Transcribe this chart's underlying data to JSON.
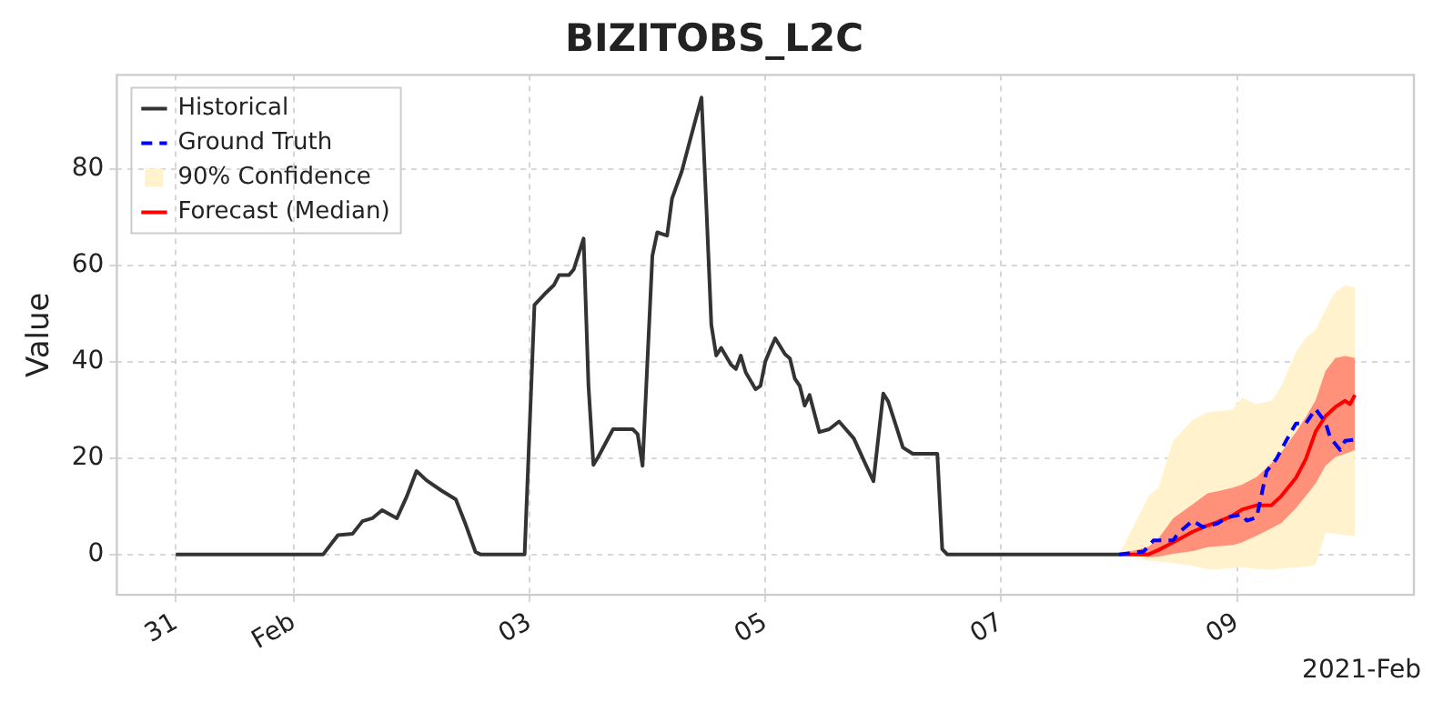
{
  "chart_data": {
    "type": "line",
    "title": "BIZITOBS_L2C",
    "ylabel": "Value",
    "annotations": [
      "2021-Feb"
    ],
    "xlim": [
      "2021-01-30T12:00",
      "2021-02-10T12:00"
    ],
    "xticks": [
      {
        "value": "2021-01-31",
        "label": "31"
      },
      {
        "value": "2021-02-01",
        "label": "Feb"
      },
      {
        "value": "2021-02-03",
        "label": "03"
      },
      {
        "value": "2021-02-05",
        "label": "05"
      },
      {
        "value": "2021-02-07",
        "label": "07"
      },
      {
        "value": "2021-02-09",
        "label": "09"
      }
    ],
    "ylim": [
      -8.4,
      99.6
    ],
    "yticks": [
      0,
      20,
      40,
      60,
      80
    ],
    "grid": true,
    "legend": "top left",
    "marker": "none",
    "series": [
      {
        "name": "Historical",
        "color": "#333333",
        "line_style": "solid",
        "x": [
          "2021-01-31T00:00",
          "2021-02-01T06:00",
          "2021-02-01T09:00",
          "2021-02-01T12:00",
          "2021-02-01T14:00",
          "2021-02-01T16:00",
          "2021-02-01T18:00",
          "2021-02-01T21:00",
          "2021-02-01T23:00",
          "2021-02-02T01:00",
          "2021-02-02T03:00",
          "2021-02-02T06:00",
          "2021-02-02T09:00",
          "2021-02-02T11:00",
          "2021-02-02T13:00",
          "2021-02-02T14:00",
          "2021-02-02T23:00",
          "2021-02-03T01:00",
          "2021-02-03T03:00",
          "2021-02-03T05:00",
          "2021-02-03T06:00",
          "2021-02-03T08:00",
          "2021-02-03T09:00",
          "2021-02-03T11:00",
          "2021-02-03T12:00",
          "2021-02-03T13:00",
          "2021-02-03T14:00",
          "2021-02-03T16:00",
          "2021-02-03T17:00",
          "2021-02-03T21:00",
          "2021-02-03T22:00",
          "2021-02-03T23:00",
          "2021-02-04T01:00",
          "2021-02-04T02:00",
          "2021-02-04T04:00",
          "2021-02-04T05:00",
          "2021-02-04T07:00",
          "2021-02-04T09:00",
          "2021-02-04T11:00",
          "2021-02-04T12:00",
          "2021-02-04T13:00",
          "2021-02-04T14:00",
          "2021-02-04T15:00",
          "2021-02-04T17:00",
          "2021-02-04T18:00",
          "2021-02-04T19:00",
          "2021-02-04T20:00",
          "2021-02-04T22:00",
          "2021-02-04T23:00",
          "2021-02-05T00:00",
          "2021-02-05T01:00",
          "2021-02-05T02:00",
          "2021-02-05T04:00",
          "2021-02-05T05:00",
          "2021-02-05T06:00",
          "2021-02-05T07:00",
          "2021-02-05T08:00",
          "2021-02-05T09:00",
          "2021-02-05T11:00",
          "2021-02-05T13:00",
          "2021-02-05T15:00",
          "2021-02-05T18:00",
          "2021-02-05T20:00",
          "2021-02-05T22:00",
          "2021-02-06T00:00",
          "2021-02-06T01:00",
          "2021-02-06T03:00",
          "2021-02-06T04:00",
          "2021-02-06T06:00",
          "2021-02-06T11:00",
          "2021-02-06T12:00",
          "2021-02-06T13:00",
          "2021-02-08T00:00"
        ],
        "values": [
          0,
          0,
          4,
          4.3,
          6.9,
          7.5,
          9.2,
          7.5,
          12,
          17.3,
          15.4,
          13.3,
          11.4,
          6.2,
          0.5,
          0,
          0,
          51.8,
          54,
          56,
          58,
          58,
          59.2,
          65.6,
          35,
          18.6,
          20.3,
          24.1,
          26,
          26,
          25,
          18.4,
          62,
          66.9,
          66.2,
          73.9,
          79.6,
          87.3,
          94.9,
          72,
          47.7,
          41.3,
          42.9,
          39.4,
          38.5,
          41.3,
          37.8,
          34.3,
          35,
          40.1,
          42.6,
          44.9,
          41.6,
          40.7,
          36.5,
          35,
          30.9,
          33.1,
          25.4,
          26,
          27.6,
          24.1,
          19.6,
          15.2,
          33.4,
          31.8,
          25.4,
          22.2,
          20.9,
          20.9,
          1.1,
          0,
          0
        ]
      },
      {
        "name": "Ground Truth",
        "color": "#0000ff",
        "line_style": "dashed",
        "x": [
          "2021-02-08T00:00",
          "2021-02-08T05:00",
          "2021-02-08T07:00",
          "2021-02-08T11:00",
          "2021-02-08T12:00",
          "2021-02-08T15:00",
          "2021-02-08T17:00",
          "2021-02-08T20:00",
          "2021-02-08T22:00",
          "2021-02-09T01:00",
          "2021-02-09T02:00",
          "2021-02-09T04:00",
          "2021-02-09T06:00",
          "2021-02-09T08:00",
          "2021-02-09T10:00",
          "2021-02-09T12:00",
          "2021-02-09T14:00",
          "2021-02-09T16:00",
          "2021-02-09T18:00",
          "2021-02-09T19:00",
          "2021-02-09T21:00",
          "2021-02-09T22:00",
          "2021-02-10T00:00"
        ],
        "values": [
          0,
          0.6,
          2.9,
          2.9,
          4.4,
          7,
          5.7,
          6.4,
          7.7,
          8.3,
          7,
          7.7,
          17.2,
          19.8,
          23.6,
          27.2,
          27.2,
          30.2,
          27.4,
          24.2,
          21.7,
          23.6,
          23.8
        ]
      },
      {
        "name": "90% Confidence",
        "color": "#fff2cc",
        "x": [
          "2021-02-08T00:00",
          "2021-02-08T06:00",
          "2021-02-08T08:00",
          "2021-02-08T11:00",
          "2021-02-08T15:00",
          "2021-02-08T18:00",
          "2021-02-08T20:00",
          "2021-02-08T23:00",
          "2021-02-09T01:00",
          "2021-02-09T04:00",
          "2021-02-09T07:00",
          "2021-02-09T09:00",
          "2021-02-09T12:00",
          "2021-02-09T14:00",
          "2021-02-09T16:00",
          "2021-02-09T18:00",
          "2021-02-09T20:00",
          "2021-02-09T22:00",
          "2021-02-09T23:00",
          "2021-02-10T00:00"
        ],
        "values": [
          null,
          null,
          null,
          null,
          null,
          null,
          null,
          null,
          null,
          null,
          null,
          null,
          null,
          null,
          null,
          null,
          null,
          null,
          null,
          null
        ],
        "lower": [
          0,
          -1.3,
          -1.5,
          -1.8,
          -2.4,
          -3.1,
          -3.2,
          -2.8,
          -2.7,
          -3,
          -3.2,
          -2.9,
          -2.7,
          -2.5,
          -2.2,
          4.5,
          4.3,
          4,
          3.9,
          3.8
        ],
        "upper": [
          0,
          12.1,
          13.8,
          23.6,
          28,
          29.5,
          29.8,
          30,
          32.5,
          31.2,
          31.9,
          34.9,
          42,
          45,
          46.6,
          50.9,
          54.5,
          55.9,
          55.7,
          55.5
        ]
      },
      {
        "name": "Forecast (Median)",
        "color": "#ff0000",
        "line_style": "solid",
        "x": [
          "2021-02-08T00:00",
          "2021-02-08T06:00",
          "2021-02-08T08:00",
          "2021-02-08T11:00",
          "2021-02-08T15:00",
          "2021-02-08T18:00",
          "2021-02-08T20:00",
          "2021-02-08T23:00",
          "2021-02-09T01:00",
          "2021-02-09T04:00",
          "2021-02-09T07:00",
          "2021-02-09T09:00",
          "2021-02-09T12:00",
          "2021-02-09T14:00",
          "2021-02-09T16:00",
          "2021-02-09T18:00",
          "2021-02-09T20:00",
          "2021-02-09T22:00",
          "2021-02-09T23:00",
          "2021-02-10T00:00"
        ],
        "values": [
          0,
          0,
          0.9,
          2.5,
          4.7,
          6,
          6.7,
          8,
          9.3,
          10.2,
          10.2,
          12.1,
          15.9,
          19.8,
          25.5,
          28.7,
          30.6,
          31.9,
          31.2,
          33.1
        ],
        "lower": [
          0,
          -0.6,
          -0.5,
          0.1,
          0.7,
          1.5,
          1.7,
          1.9,
          2.5,
          3.9,
          5.4,
          6.5,
          9.6,
          12.1,
          14.7,
          18.4,
          20.2,
          20.9,
          21.3,
          21.7
        ],
        "upper": [
          0,
          1.6,
          3.3,
          7.5,
          10.4,
          12.7,
          13.1,
          13.8,
          14.5,
          16.1,
          18.9,
          21.2,
          25.4,
          28.5,
          32,
          38.1,
          40.8,
          41.2,
          41,
          40.8
        ]
      }
    ]
  }
}
